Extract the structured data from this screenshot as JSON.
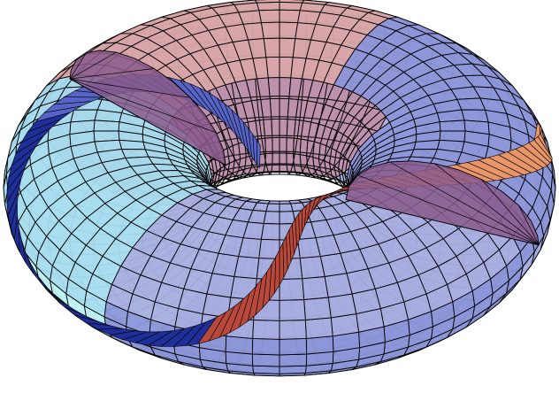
{
  "figure": {
    "subject": "torus-cutaway",
    "background": "#ffffff",
    "wire_color": "#000000",
    "palette": {
      "lavender": "#a9aee0",
      "periwinkle": "#8c96d8",
      "mauve": "#b98aa8",
      "plum": "#8a5a8c",
      "rose": "#d9a7a8",
      "peach": "#f2b07f",
      "orange": "#e8956a",
      "brick": "#b8483a",
      "cyan": "#a6dcef",
      "aqua": "#bff2f2",
      "blue": "#5664c8",
      "navy": "#1f2f9a"
    }
  }
}
